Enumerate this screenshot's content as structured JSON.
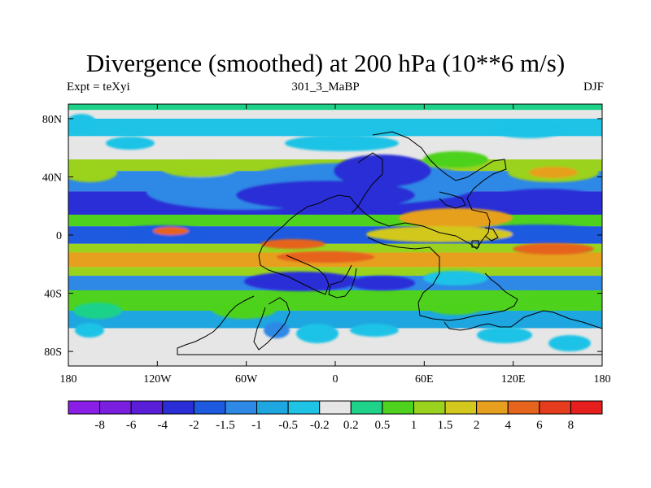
{
  "title": "Divergence (smoothed) at 200 hPa (10**6 m/s)",
  "subtitle_left": "Expt = teXyi",
  "subtitle_center": "301_3_MaBP",
  "subtitle_right": "DJF",
  "chart_data": {
    "type": "heatmap",
    "title": "Divergence (smoothed) at 200 hPa (10**6 m/s)",
    "x_range": [
      -180,
      180
    ],
    "y_range": [
      -90,
      90
    ],
    "x_ticks": [
      {
        "value": -180,
        "label": "180"
      },
      {
        "value": -120,
        "label": "120W"
      },
      {
        "value": -60,
        "label": "60W"
      },
      {
        "value": 0,
        "label": "0"
      },
      {
        "value": 60,
        "label": "60E"
      },
      {
        "value": 120,
        "label": "120E"
      },
      {
        "value": 180,
        "label": "180"
      }
    ],
    "y_ticks": [
      {
        "value": 80,
        "label": "80N"
      },
      {
        "value": 40,
        "label": "40N"
      },
      {
        "value": 0,
        "label": "0"
      },
      {
        "value": -40,
        "label": "40S"
      },
      {
        "value": -80,
        "label": "80S"
      }
    ],
    "colorbar": {
      "labels": [
        "-8",
        "-6",
        "-4",
        "-2",
        "-1.5",
        "-1",
        "-0.5",
        "-0.2",
        "0.2",
        "0.5",
        "1",
        "1.5",
        "2",
        "4",
        "6",
        "8"
      ],
      "colors": [
        "#8a1ee6",
        "#7a1ee0",
        "#5a1ed8",
        "#2a2ed6",
        "#1e5ae0",
        "#2e88e6",
        "#1ea6e0",
        "#1ec3e6",
        "#e6e6e6",
        "#1ed28a",
        "#4ed21e",
        "#9ad21e",
        "#d2c81e",
        "#e6a01e",
        "#e6641e",
        "#e63c1e",
        "#e61e1e"
      ]
    },
    "bands": [
      {
        "lat": [
          86,
          90
        ],
        "level": "0.2"
      },
      {
        "lat": [
          68,
          80
        ],
        "level": "-0.2"
      },
      {
        "lat": [
          44,
          52
        ],
        "level": "1"
      },
      {
        "lat": [
          30,
          44
        ],
        "level": "-1"
      },
      {
        "lat": [
          14,
          30
        ],
        "level": "-2"
      },
      {
        "lat": [
          6,
          14
        ],
        "level": "0.5"
      },
      {
        "lat": [
          -6,
          6
        ],
        "level": "-1.5"
      },
      {
        "lat": [
          -12,
          -6
        ],
        "level": "1"
      },
      {
        "lat": [
          -22,
          -12
        ],
        "level": "2"
      },
      {
        "lat": [
          -28,
          -22
        ],
        "level": "1"
      },
      {
        "lat": [
          -38,
          -28
        ],
        "level": "-1"
      },
      {
        "lat": [
          -52,
          -38
        ],
        "level": "0.5"
      },
      {
        "lat": [
          -64,
          -52
        ],
        "level": "-0.5"
      }
    ]
  }
}
